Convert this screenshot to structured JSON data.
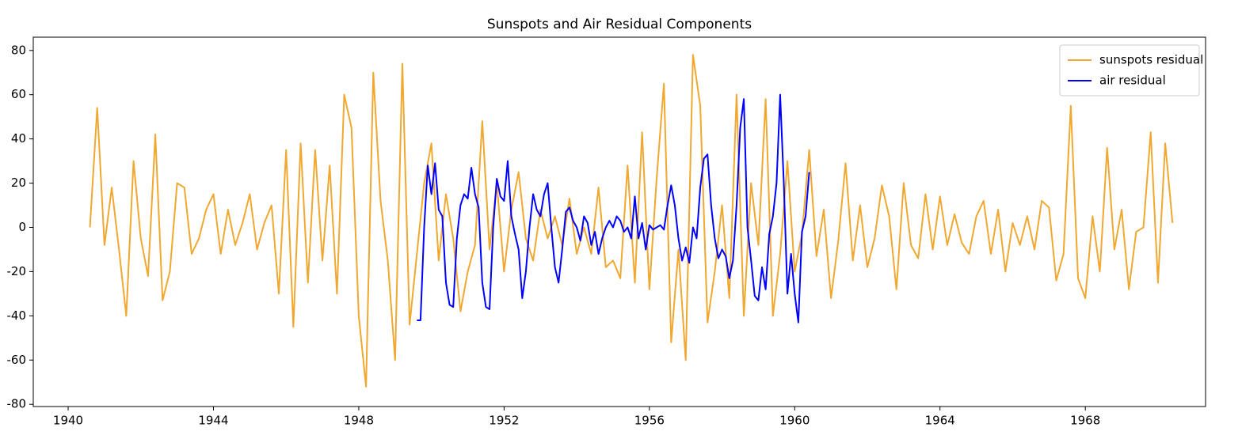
{
  "chart_data": {
    "type": "line",
    "title": "Sunspots and Air Residual Components",
    "xlim": [
      1939.04,
      1971.31
    ],
    "xticks": [
      1940,
      1944,
      1948,
      1952,
      1956,
      1960,
      1964,
      1968
    ],
    "ylim": [
      -81,
      86
    ],
    "yticks": [
      -80,
      -60,
      -40,
      -20,
      0,
      20,
      40,
      60,
      80
    ],
    "grid": false,
    "legend": "upper right",
    "series": [
      {
        "name": "sunspots residual",
        "color": "#f0a830",
        "x": [
          1940.6,
          1940.8,
          1941.0,
          1941.2,
          1941.4,
          1941.6,
          1941.8,
          1942.0,
          1942.2,
          1942.4,
          1942.6,
          1942.8,
          1943.0,
          1943.2,
          1943.4,
          1943.6,
          1943.8,
          1944.0,
          1944.2,
          1944.4,
          1944.6,
          1944.8,
          1945.0,
          1945.2,
          1945.4,
          1945.6,
          1945.8,
          1946.0,
          1946.2,
          1946.4,
          1946.6,
          1946.8,
          1947.0,
          1947.2,
          1947.4,
          1947.6,
          1947.8,
          1948.0,
          1948.2,
          1948.4,
          1948.6,
          1948.8,
          1949.0,
          1949.2,
          1949.4,
          1949.6,
          1949.8,
          1950.0,
          1950.2,
          1950.4,
          1950.6,
          1950.8,
          1951.0,
          1951.2,
          1951.4,
          1951.6,
          1951.8,
          1952.0,
          1952.2,
          1952.4,
          1952.6,
          1952.8,
          1953.0,
          1953.2,
          1953.4,
          1953.6,
          1953.8,
          1954.0,
          1954.2,
          1954.4,
          1954.6,
          1954.8,
          1955.0,
          1955.2,
          1955.4,
          1955.6,
          1955.8,
          1956.0,
          1956.2,
          1956.4,
          1956.6,
          1956.8,
          1957.0,
          1957.2,
          1957.4,
          1957.6,
          1957.8,
          1958.0,
          1958.2,
          1958.4,
          1958.6,
          1958.8,
          1959.0,
          1959.2,
          1959.4,
          1959.6,
          1959.8,
          1960.0,
          1960.2,
          1960.4,
          1960.6,
          1960.8,
          1961.0,
          1961.2,
          1961.4,
          1961.6,
          1961.8,
          1962.0,
          1962.2,
          1962.4,
          1962.6,
          1962.8,
          1963.0,
          1963.2,
          1963.4,
          1963.6,
          1963.8,
          1964.0,
          1964.2,
          1964.4,
          1964.6,
          1964.8,
          1965.0,
          1965.2,
          1965.4,
          1965.6,
          1965.8,
          1966.0,
          1966.2,
          1966.4,
          1966.6,
          1966.8,
          1967.0,
          1967.2,
          1967.4,
          1967.6,
          1967.8,
          1968.0,
          1968.2,
          1968.4,
          1968.6,
          1968.8,
          1969.0,
          1969.2,
          1969.4,
          1969.6,
          1969.8,
          1970.0,
          1970.2,
          1970.4
        ],
        "values": [
          0,
          54,
          -8,
          18,
          -10,
          -40,
          30,
          -5,
          -22,
          42,
          -33,
          -20,
          20,
          18,
          -12,
          -5,
          8,
          15,
          -12,
          8,
          -8,
          2,
          15,
          -10,
          2,
          10,
          -30,
          35,
          -45,
          38,
          -25,
          35,
          -15,
          28,
          -30,
          60,
          45,
          -40,
          -72,
          70,
          12,
          -15,
          -60,
          74,
          -44,
          -12,
          20,
          38,
          -15,
          15,
          -5,
          -38,
          -20,
          -8,
          48,
          -10,
          20,
          -20,
          8,
          25,
          -5,
          -15,
          8,
          -5,
          5,
          -8,
          13,
          -12,
          0,
          -12,
          18,
          -18,
          -15,
          -23,
          28,
          -25,
          43,
          -28,
          22,
          65,
          -52,
          -10,
          -60,
          78,
          55,
          -43,
          -20,
          10,
          -32,
          60,
          -40,
          20,
          -8,
          58,
          -40,
          -12,
          30,
          -20,
          -3,
          35,
          -13,
          8,
          -32,
          -6,
          29,
          -15,
          10,
          -18,
          -5,
          19,
          5,
          -28,
          20,
          -8,
          -14,
          15,
          -10,
          14,
          -8,
          6,
          -7,
          -12,
          5,
          12,
          -12,
          8,
          -20,
          2,
          -8,
          5,
          -10,
          12,
          9,
          -24,
          -12,
          55,
          -23,
          -32,
          5,
          -20,
          36,
          -10,
          8,
          -28,
          -2,
          0,
          43,
          -25,
          38,
          2
        ]
      },
      {
        "name": "air residual",
        "color": "#0000ff",
        "x": [
          1949.6,
          1949.7,
          1949.8,
          1949.9,
          1950.0,
          1950.1,
          1950.2,
          1950.3,
          1950.4,
          1950.5,
          1950.6,
          1950.7,
          1950.8,
          1950.9,
          1951.0,
          1951.1,
          1951.2,
          1951.3,
          1951.4,
          1951.5,
          1951.6,
          1951.7,
          1951.8,
          1951.9,
          1952.0,
          1952.1,
          1952.2,
          1952.3,
          1952.4,
          1952.5,
          1952.6,
          1952.7,
          1952.8,
          1952.9,
          1953.0,
          1953.1,
          1953.2,
          1953.3,
          1953.4,
          1953.5,
          1953.6,
          1953.7,
          1953.8,
          1953.9,
          1954.0,
          1954.1,
          1954.2,
          1954.3,
          1954.4,
          1954.5,
          1954.6,
          1954.7,
          1954.8,
          1954.9,
          1955.0,
          1955.1,
          1955.2,
          1955.3,
          1955.4,
          1955.5,
          1955.6,
          1955.7,
          1955.8,
          1955.9,
          1956.0,
          1956.1,
          1956.2,
          1956.3,
          1956.4,
          1956.5,
          1956.6,
          1956.7,
          1956.8,
          1956.9,
          1957.0,
          1957.1,
          1957.2,
          1957.3,
          1957.4,
          1957.5,
          1957.6,
          1957.7,
          1957.8,
          1957.9,
          1958.0,
          1958.1,
          1958.2,
          1958.3,
          1958.4,
          1958.5,
          1958.6,
          1958.7,
          1958.8,
          1958.9,
          1959.0,
          1959.1,
          1959.2,
          1959.3,
          1959.4,
          1959.5,
          1959.6,
          1959.7,
          1959.8,
          1959.9,
          1960.0,
          1960.1,
          1960.2,
          1960.3,
          1960.4
        ],
        "values": [
          -42,
          -42,
          0,
          28,
          15,
          29,
          8,
          5,
          -25,
          -35,
          -36,
          -5,
          10,
          15,
          13,
          27,
          15,
          9,
          -25,
          -36,
          -37,
          0,
          22,
          14,
          12,
          30,
          5,
          -3,
          -10,
          -32,
          -20,
          0,
          15,
          8,
          5,
          15,
          20,
          0,
          -18,
          -25,
          -10,
          7,
          9,
          3,
          0,
          -6,
          5,
          2,
          -8,
          -2,
          -12,
          -5,
          0,
          3,
          0,
          5,
          3,
          -2,
          0,
          -5,
          14,
          -5,
          2,
          -10,
          1,
          -1,
          0,
          1,
          -1,
          10,
          19,
          10,
          -5,
          -15,
          -9,
          -16,
          0,
          -5,
          18,
          31,
          33,
          10,
          -5,
          -14,
          -10,
          -13,
          -23,
          -15,
          10,
          45,
          58,
          0,
          -15,
          -31,
          -33,
          -18,
          -28,
          -3,
          5,
          20,
          60,
          20,
          -30,
          -12,
          -30,
          -43,
          -2,
          5,
          25
        ]
      }
    ]
  }
}
